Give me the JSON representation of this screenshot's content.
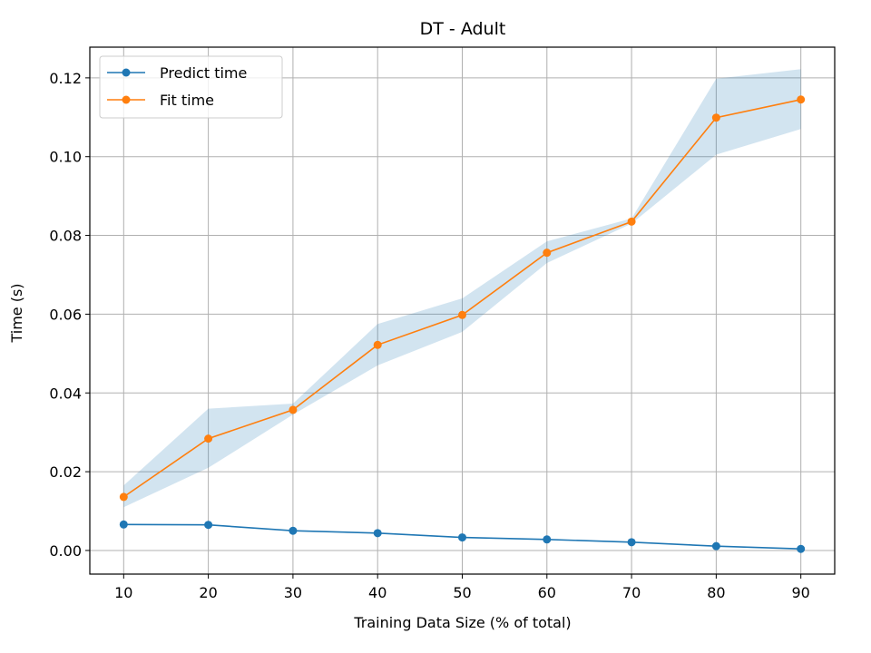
{
  "chart_data": {
    "type": "line",
    "title": "DT - Adult",
    "xlabel": "Training Data Size (% of total)",
    "ylabel": "Time (s)",
    "x": [
      10,
      20,
      30,
      40,
      50,
      60,
      70,
      80,
      90
    ],
    "xlim": [
      6,
      94
    ],
    "ylim": [
      -0.006,
      0.1278
    ],
    "xticks": [
      "10",
      "20",
      "30",
      "40",
      "50",
      "60",
      "70",
      "80",
      "90"
    ],
    "yticks": [
      "0.00",
      "0.02",
      "0.04",
      "0.06",
      "0.08",
      "0.10",
      "0.12"
    ],
    "grid": true,
    "legend_position": "upper-left",
    "series": [
      {
        "name": "Predict time",
        "color": "#1f77b4",
        "marker": "circle",
        "values": [
          0.0066,
          0.0065,
          0.005,
          0.0044,
          0.0033,
          0.0028,
          0.0021,
          0.0011,
          0.0004
        ]
      },
      {
        "name": "Fit time",
        "color": "#ff7f0e",
        "marker": "circle",
        "values": [
          0.0136,
          0.0284,
          0.0357,
          0.0522,
          0.0598,
          0.0756,
          0.0835,
          0.1099,
          0.1145
        ],
        "band_color": "#1f77b4",
        "band_lower": [
          0.011,
          0.021,
          0.0345,
          0.047,
          0.0555,
          0.073,
          0.083,
          0.1005,
          0.107
        ],
        "band_upper": [
          0.0165,
          0.036,
          0.0373,
          0.0575,
          0.064,
          0.0785,
          0.0843,
          0.1198,
          0.1222
        ]
      }
    ]
  }
}
